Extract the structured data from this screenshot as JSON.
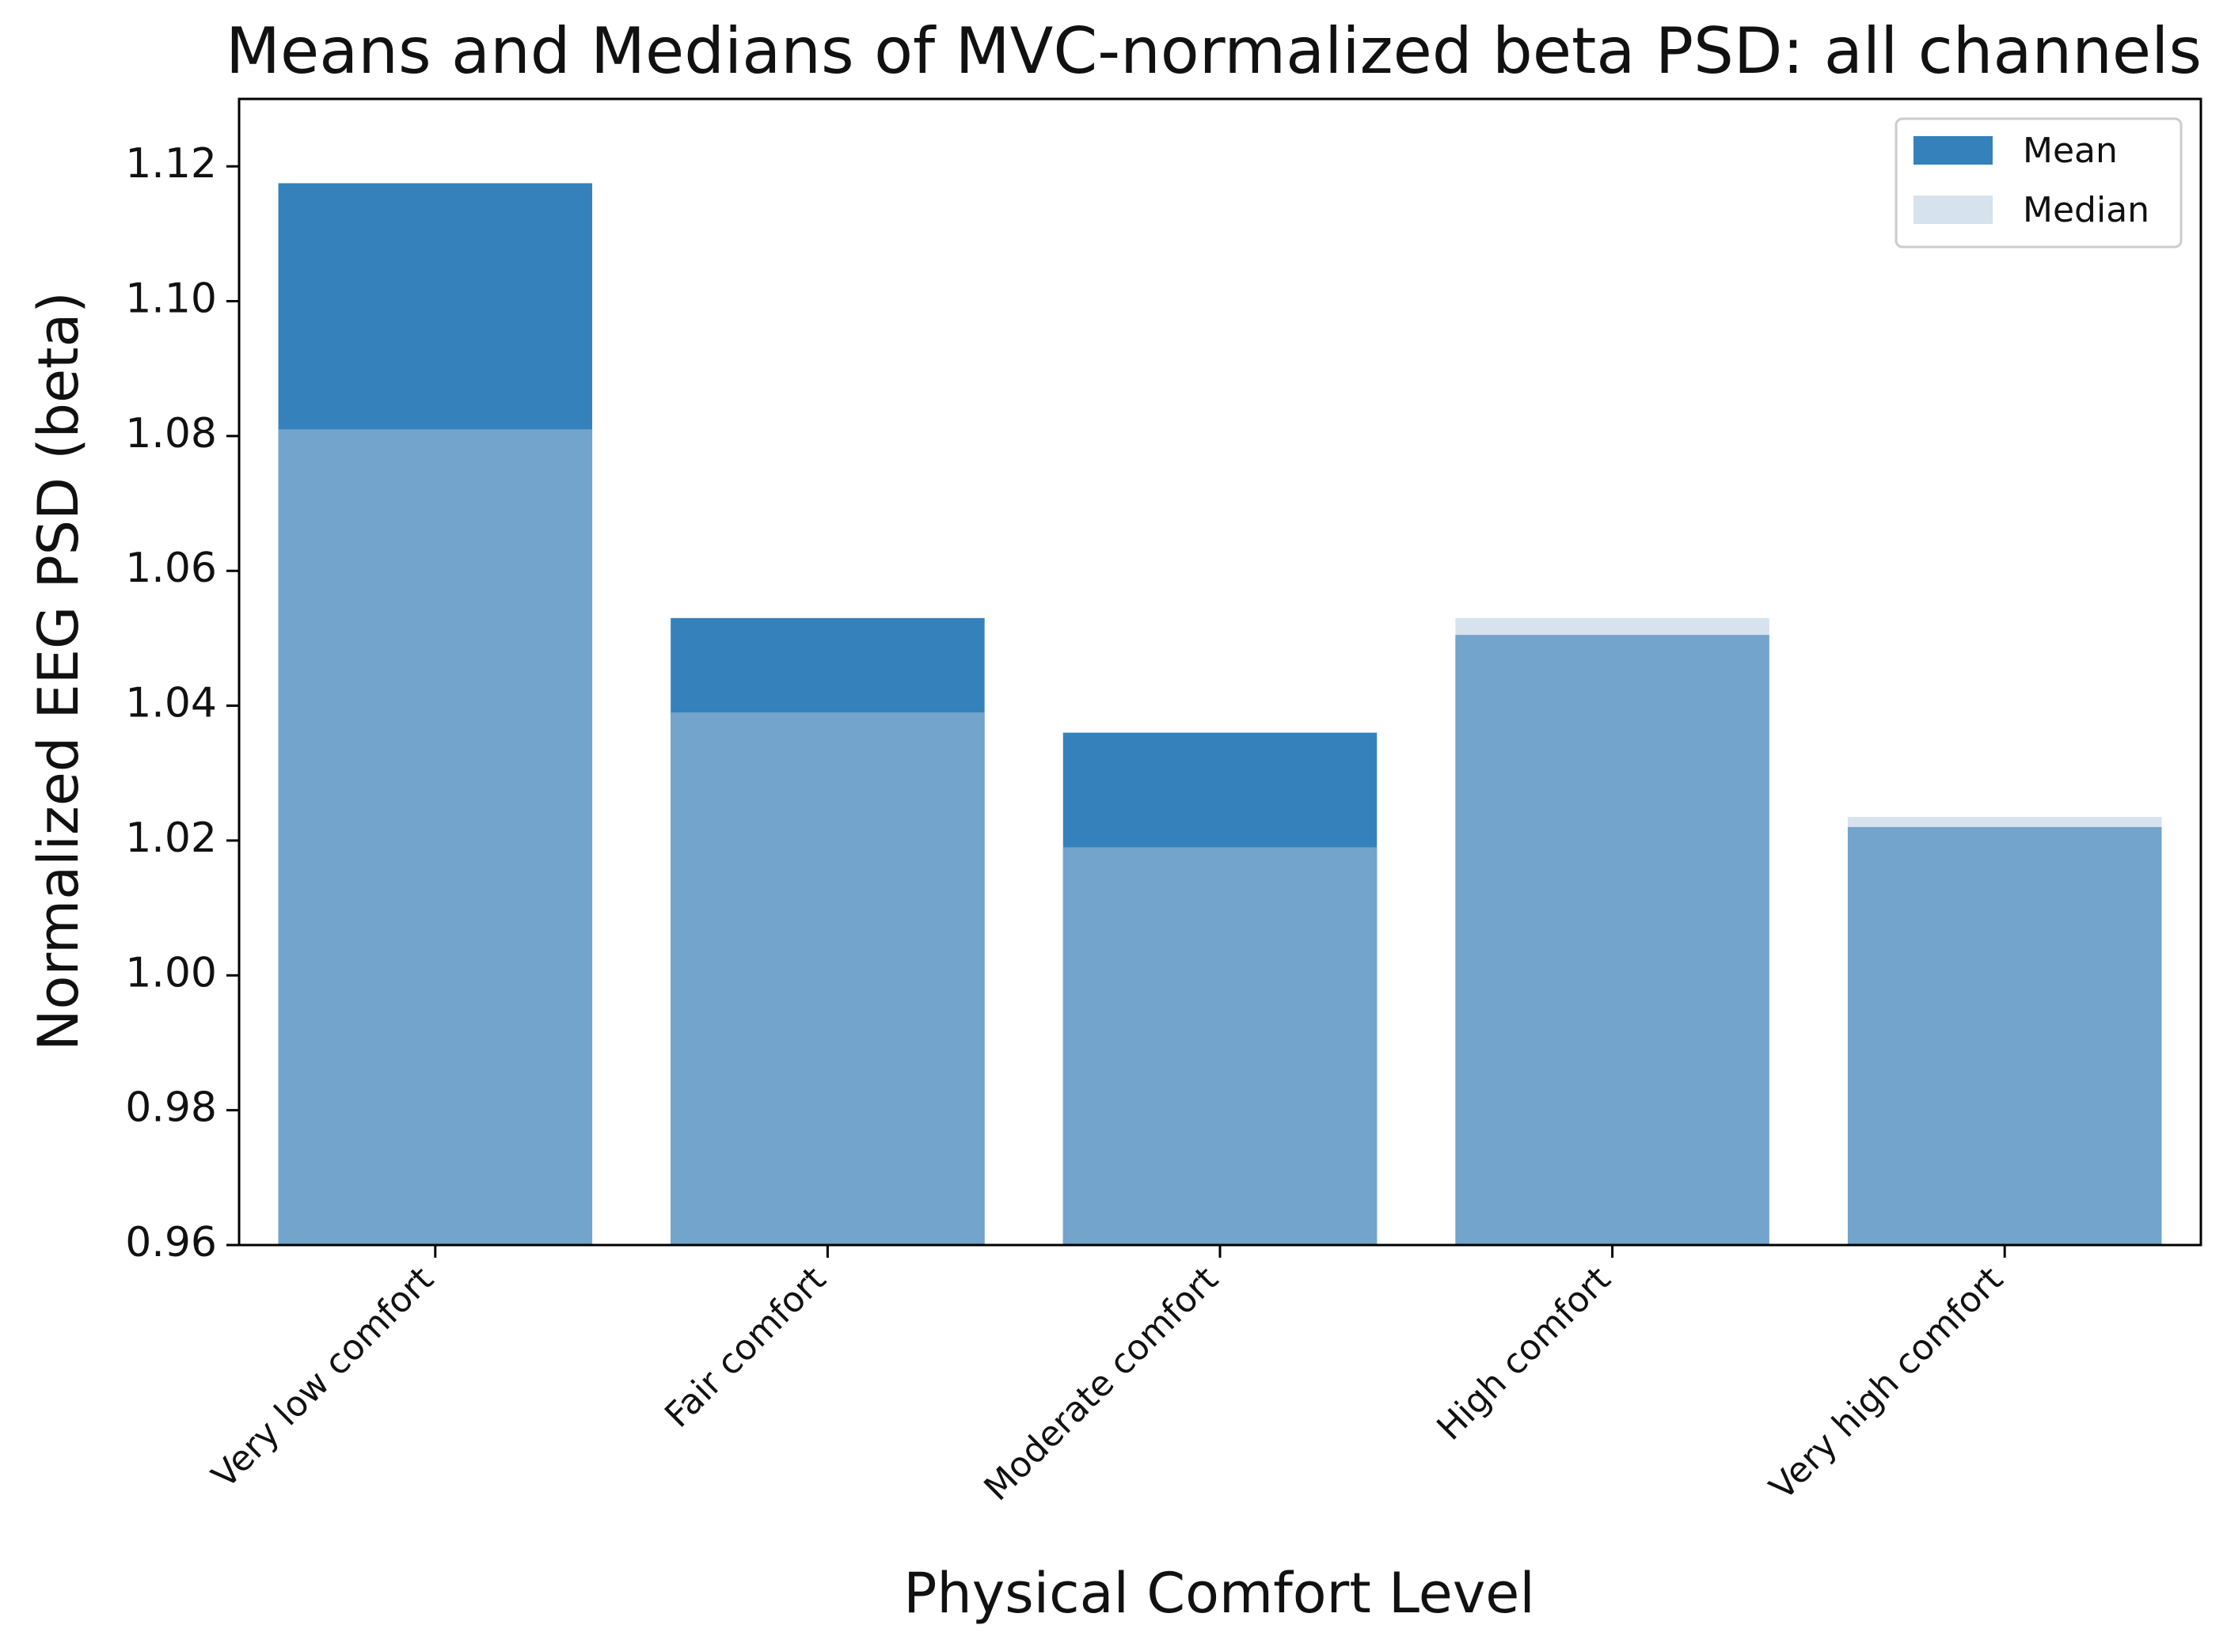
{
  "chart_data": {
    "type": "bar",
    "title": "Means and Medians of MVC-normalized beta PSD: all channels",
    "xlabel": "Physical Comfort Level",
    "ylabel": "Normalized EEG PSD (beta)",
    "ylim": [
      0.96,
      1.13
    ],
    "yticks": [
      "0.96",
      "0.98",
      "1.00",
      "1.02",
      "1.04",
      "1.06",
      "1.08",
      "1.10",
      "1.12"
    ],
    "categories": [
      "Very low comfort",
      "Fair comfort",
      "Moderate comfort",
      "High comfort",
      "Very high comfort"
    ],
    "series": [
      {
        "name": "Mean",
        "color": "#3581bb",
        "values": [
          1.1175,
          1.053,
          1.036,
          1.0505,
          1.022
        ]
      },
      {
        "name": "Median",
        "color": "#d6e2ee",
        "values": [
          1.081,
          1.039,
          1.019,
          1.053,
          1.0235
        ]
      }
    ],
    "overlap_color": "#72a4cc",
    "legend_position": "top-right",
    "grid": false
  }
}
